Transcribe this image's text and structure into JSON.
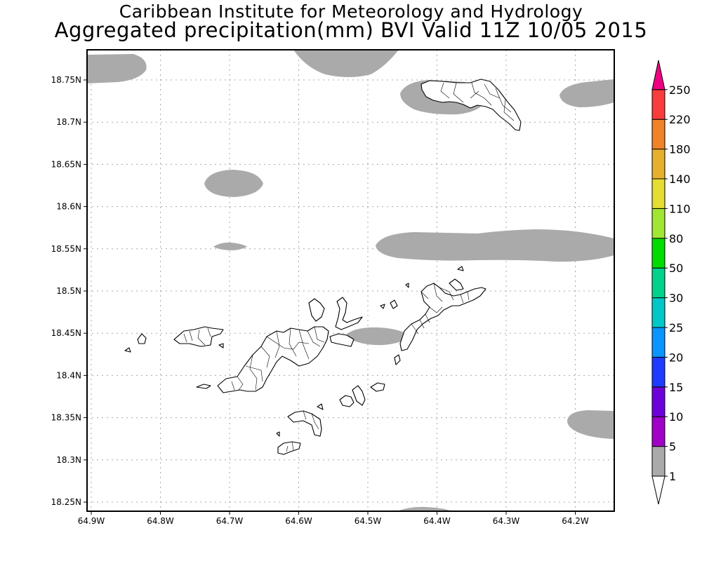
{
  "header": {
    "title": "Caribbean Institute for Meteorology and Hydrology",
    "subtitle": "Aggregated precipitation(mm) BVI Valid 11Z 10/05 2015"
  },
  "map": {
    "lat_ticks": [
      "18.75N",
      "18.7N",
      "18.65N",
      "18.6N",
      "18.55N",
      "18.5N",
      "18.45N",
      "18.4N",
      "18.35N",
      "18.3N",
      "18.25N"
    ],
    "lon_ticks": [
      "64.9W",
      "64.8W",
      "64.7W",
      "64.6W",
      "64.5W",
      "64.4W",
      "64.3W",
      "64.2W"
    ],
    "precip_color": "#aaaaaa"
  },
  "legend": {
    "levels": [
      "1",
      "5",
      "10",
      "15",
      "20",
      "25",
      "30",
      "50",
      "80",
      "110",
      "140",
      "180",
      "220",
      "250"
    ],
    "colors": [
      "#aaaaaa",
      "#a000c8",
      "#6e00dc",
      "#1e3cff",
      "#0a96ff",
      "#00c8c8",
      "#00d28c",
      "#00dc00",
      "#a0e632",
      "#e6dc32",
      "#e6af2d",
      "#f08228",
      "#fa3c3c",
      "#f00082"
    ]
  }
}
